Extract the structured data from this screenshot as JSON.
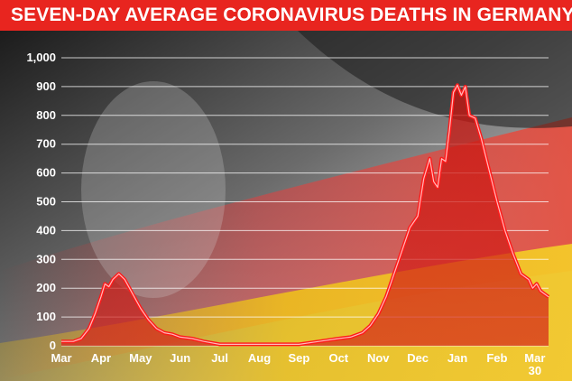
{
  "colors": {
    "banner": "#e8251f",
    "line": "#ff1a1a",
    "area": "#c41a14"
  },
  "chart_data": {
    "type": "area",
    "title": "SEVEN-DAY AVERAGE CORONAVIRUS DEATHS IN GERMANY",
    "xlabel": "",
    "ylabel": "",
    "ylim": [
      0,
      1000
    ],
    "y_ticks": [
      "0",
      "100",
      "200",
      "300",
      "400",
      "500",
      "600",
      "700",
      "800",
      "900",
      "1,000"
    ],
    "x_ticks": [
      "Mar",
      "Apr",
      "May",
      "Jun",
      "Jul",
      "Aug",
      "Sep",
      "Oct",
      "Nov",
      "Dec",
      "Jan",
      "Feb",
      "Mar 30"
    ],
    "grid": true,
    "series": [
      {
        "values": [
          [
            0,
            15
          ],
          [
            0.3,
            15
          ],
          [
            0.5,
            25
          ],
          [
            0.7,
            60
          ],
          [
            0.85,
            110
          ],
          [
            1.0,
            170
          ],
          [
            1.1,
            215
          ],
          [
            1.2,
            205
          ],
          [
            1.3,
            230
          ],
          [
            1.45,
            250
          ],
          [
            1.6,
            230
          ],
          [
            1.8,
            180
          ],
          [
            2.0,
            130
          ],
          [
            2.2,
            90
          ],
          [
            2.4,
            60
          ],
          [
            2.6,
            45
          ],
          [
            2.8,
            40
          ],
          [
            3.0,
            30
          ],
          [
            3.3,
            25
          ],
          [
            3.6,
            15
          ],
          [
            4.0,
            5
          ],
          [
            4.5,
            5
          ],
          [
            5.0,
            5
          ],
          [
            5.5,
            5
          ],
          [
            6.0,
            5
          ],
          [
            6.5,
            15
          ],
          [
            7.0,
            25
          ],
          [
            7.3,
            30
          ],
          [
            7.6,
            45
          ],
          [
            7.8,
            70
          ],
          [
            8.0,
            110
          ],
          [
            8.2,
            170
          ],
          [
            8.4,
            250
          ],
          [
            8.6,
            330
          ],
          [
            8.8,
            410
          ],
          [
            9.0,
            450
          ],
          [
            9.15,
            580
          ],
          [
            9.3,
            650
          ],
          [
            9.4,
            570
          ],
          [
            9.5,
            550
          ],
          [
            9.6,
            650
          ],
          [
            9.7,
            640
          ],
          [
            9.8,
            750
          ],
          [
            9.9,
            880
          ],
          [
            10.0,
            905
          ],
          [
            10.1,
            870
          ],
          [
            10.2,
            900
          ],
          [
            10.3,
            800
          ],
          [
            10.45,
            790
          ],
          [
            10.6,
            720
          ],
          [
            10.8,
            610
          ],
          [
            11.0,
            500
          ],
          [
            11.2,
            400
          ],
          [
            11.4,
            320
          ],
          [
            11.6,
            250
          ],
          [
            11.8,
            230
          ],
          [
            11.9,
            200
          ],
          [
            12.0,
            215
          ],
          [
            12.1,
            190
          ],
          [
            12.2,
            180
          ],
          [
            12.3,
            170
          ]
        ]
      }
    ]
  }
}
